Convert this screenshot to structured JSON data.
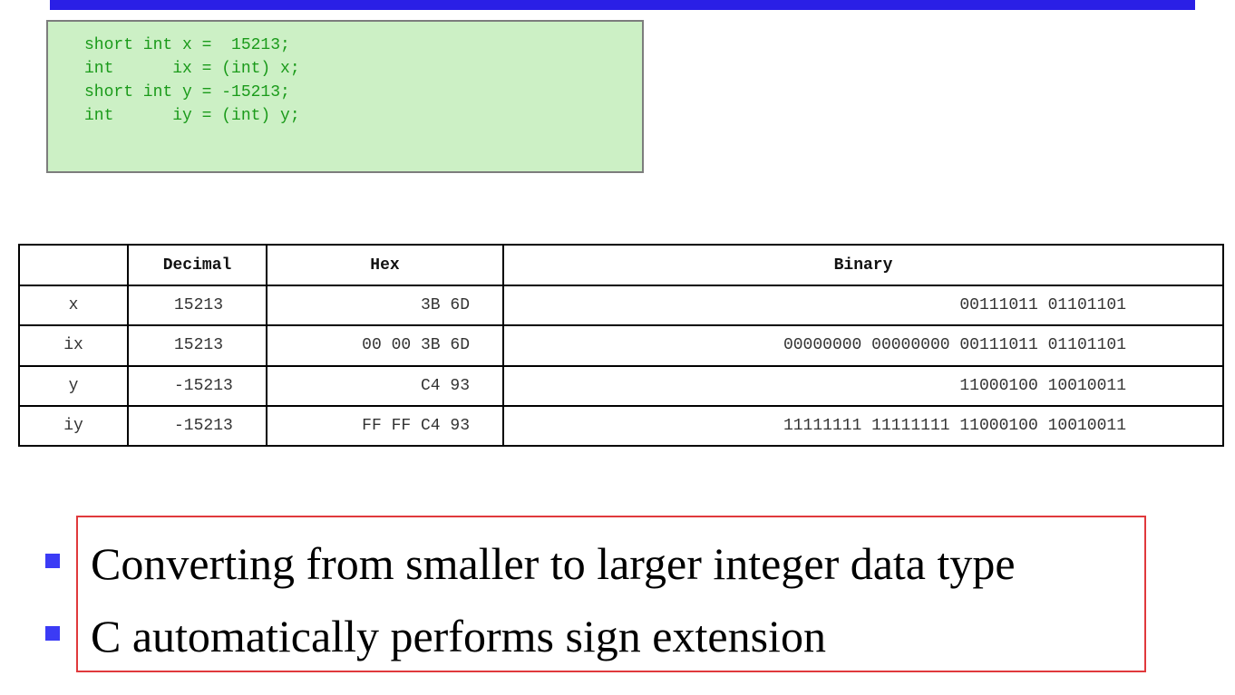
{
  "code": {
    "lines": [
      "short int x =  15213;",
      "int      ix = (int) x;",
      "short int y = -15213;",
      "int      iy = (int) y;"
    ]
  },
  "table": {
    "headers": [
      "",
      "Decimal",
      "Hex",
      "Binary"
    ],
    "rows": [
      [
        "x",
        "15213",
        "3B 6D",
        "00111011 01101101"
      ],
      [
        "ix",
        "15213",
        "00 00 3B 6D",
        "00000000 00000000 00111011 01101101"
      ],
      [
        "y",
        "-15213",
        "C4 93",
        "11000100 10010011"
      ],
      [
        "iy",
        "-15213",
        "FF FF C4 93",
        "11111111 11111111 11000100 10010011"
      ]
    ]
  },
  "notes": {
    "items": [
      "Converting from smaller to larger integer data type",
      "C automatically performs sign extension"
    ]
  },
  "colors": {
    "top_bar": "#2a1fe6",
    "code_bg": "#ccf0c5",
    "code_text": "#1a9a1a",
    "bullet": "#3b3bf5",
    "note_border": "#e0393c"
  }
}
